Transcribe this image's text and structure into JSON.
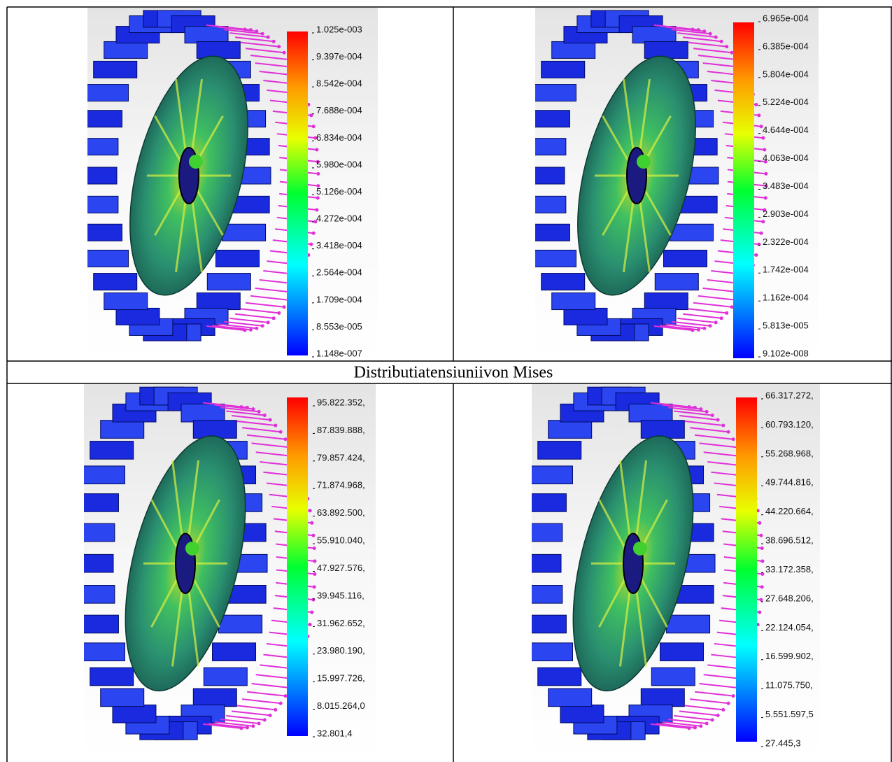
{
  "panels": [
    {
      "legend": [
        "1.025e-003",
        "9.397e-004",
        "8.542e-004",
        "7.688e-004",
        "6.834e-004",
        "5.980e-004",
        "5.126e-004",
        "4.272e-004",
        "3.418e-004",
        "2.564e-004",
        "1.709e-004",
        "8.553e-005",
        "1.148e-007"
      ]
    },
    {
      "legend": [
        "6.965e-004",
        "6.385e-004",
        "5.804e-004",
        "5.224e-004",
        "4.644e-004",
        "4.063e-004",
        "3.483e-004",
        "2.903e-004",
        "2.322e-004",
        "1.742e-004",
        "1.162e-004",
        "5.813e-005",
        "9.102e-008"
      ]
    },
    {
      "legend": [
        "95.822.352,",
        "87.839.888,",
        "79.857.424,",
        "71.874.968,",
        "63.892.500,",
        "55.910.040,",
        "47.927.576,",
        "39.945.116,",
        "31.962.652,",
        "23.980.190,",
        "15.997.726,",
        "8.015.264,0",
        "32.801,4"
      ]
    },
    {
      "legend": [
        "66.317.272,",
        "60.793.120,",
        "55.268.968,",
        "49.744.816,",
        "44.220.664,",
        "38.696.512,",
        "33.172.358,",
        "27.648.206,",
        "22.124.054,",
        "16.599.902,",
        "11.075.750,",
        "5.551.597,5",
        "27.445,3"
      ]
    }
  ],
  "caption": "Distributiatensiuniivon Mises"
}
